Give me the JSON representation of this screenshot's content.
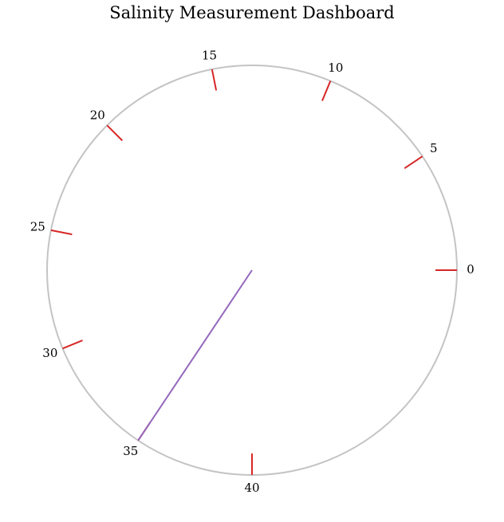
{
  "chart_data": {
    "type": "gauge",
    "title": "Salinity Measurement Dashboard",
    "value": 35,
    "range": [
      0,
      40
    ],
    "ticks": [
      0,
      5,
      10,
      15,
      20,
      25,
      30,
      35,
      40
    ],
    "tick_labels": [
      "0",
      "5",
      "10",
      "15",
      "20",
      "25",
      "30",
      "35",
      "40"
    ],
    "colors": {
      "dial": "#c4c4c4",
      "ticks": "#d62728",
      "needle": "#9467bd"
    }
  }
}
